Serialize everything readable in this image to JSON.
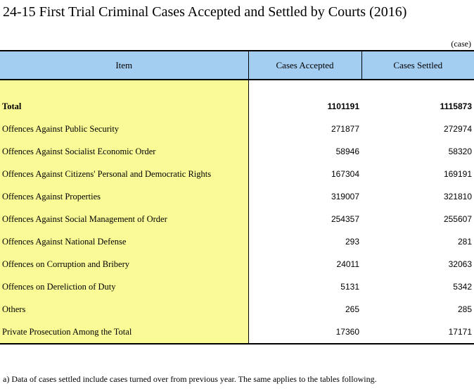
{
  "title": "24-15  First Trial Criminal Cases Accepted and Settled by Courts (2016)",
  "unit": "(case)",
  "headers": {
    "item": "Item",
    "accepted": "Cases Accepted",
    "settled": "Cases Settled"
  },
  "rows": [
    {
      "item": "Total",
      "accepted": "1101191",
      "settled": "1115873"
    },
    {
      "item": "Offences Against Public Security",
      "accepted": "271877",
      "settled": "272974"
    },
    {
      "item": "Offences Against Socialist Economic Order",
      "accepted": "58946",
      "settled": "58320"
    },
    {
      "item": "Offences Against Citizens' Personal and Democratic Rights",
      "accepted": "167304",
      "settled": "169191"
    },
    {
      "item": "Offences Against Properties",
      "accepted": "319007",
      "settled": "321810"
    },
    {
      "item": "Offences Against Social Management of Order",
      "accepted": "254357",
      "settled": "255607"
    },
    {
      "item": "Offences Against National Defense",
      "accepted": "293",
      "settled": "281"
    },
    {
      "item": "Offences on Corruption and Bribery",
      "accepted": "24011",
      "settled": "32063"
    },
    {
      "item": "Offences on Dereliction of Duty",
      "accepted": "5131",
      "settled": "5342"
    },
    {
      "item": "Others",
      "accepted": "265",
      "settled": "285"
    },
    {
      "item": "Private Prosecution Among the Total",
      "accepted": "17360",
      "settled": "17171"
    }
  ],
  "footnote": "a) Data of cases settled include cases turned over from previous year. The same applies to the tables following.",
  "colors": {
    "header_bg": "#a3cdf1",
    "item_bg": "#fafa96"
  }
}
